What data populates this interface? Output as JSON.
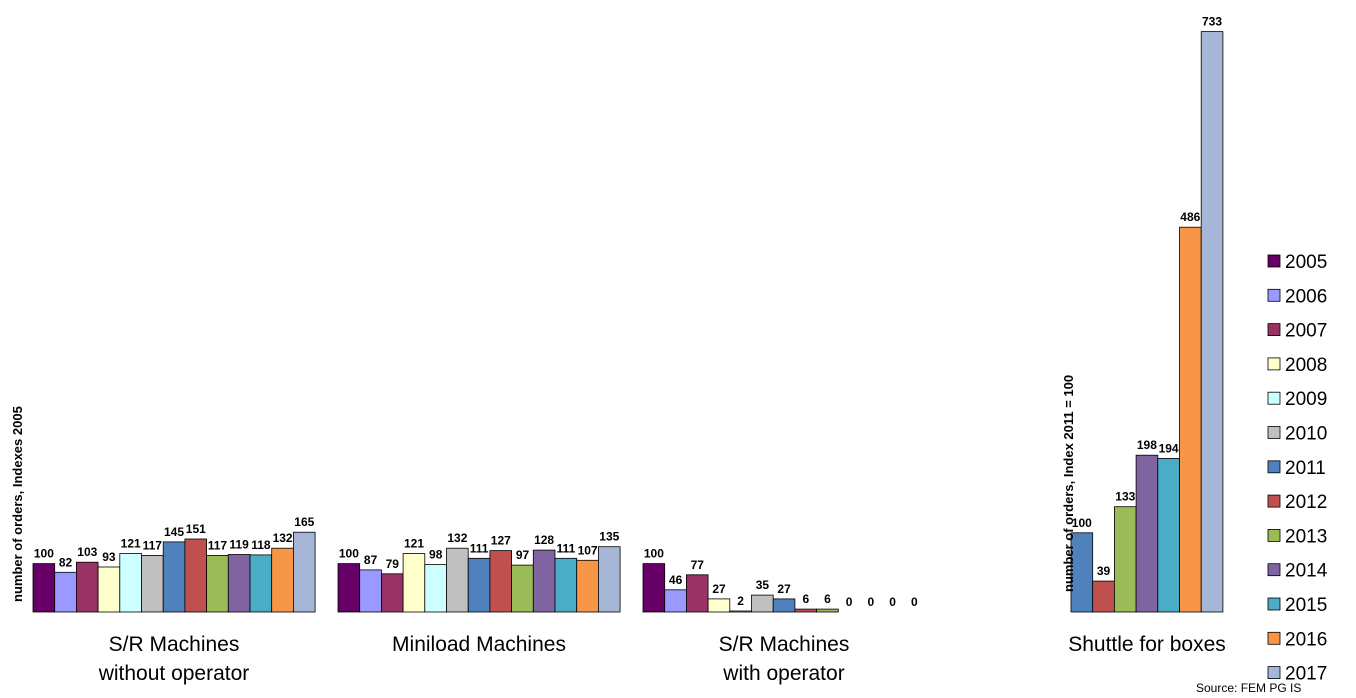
{
  "chart_data": {
    "type": "bar",
    "ylabel_left": "number of orders, Indexes 2005",
    "ylabel_right": "number of orders, Index  2011 = 100",
    "source": "Source: FEM PG IS",
    "legend_position": "right",
    "grid": false,
    "years": [
      "2005",
      "2006",
      "2007",
      "2008",
      "2009",
      "2010",
      "2011",
      "2012",
      "2013",
      "2014",
      "2015",
      "2016",
      "2017"
    ],
    "colors": [
      "#660066",
      "#9999FF",
      "#993366",
      "#FFFFCC",
      "#CCFFFF",
      "#C0C0C0",
      "#4F81BD",
      "#C0504D",
      "#9BBB59",
      "#8064A2",
      "#4BACC6",
      "#F79646",
      "#A6B6D6"
    ],
    "groups": [
      {
        "label": [
          "S/R Machines",
          "without operator"
        ],
        "values": [
          100,
          82,
          103,
          93,
          121,
          117,
          145,
          151,
          117,
          119,
          118,
          132,
          165
        ],
        "value_labels": [
          "100",
          "82",
          "103",
          "93",
          "121",
          "117",
          "145",
          "151",
          "117",
          "119",
          "118",
          "132",
          "165"
        ]
      },
      {
        "label": [
          "Miniload Machines"
        ],
        "values": [
          100,
          87,
          79,
          121,
          98,
          132,
          111,
          127,
          97,
          128,
          111,
          107,
          135
        ],
        "value_labels": [
          "100",
          "87",
          "79",
          "121",
          "98",
          "132",
          "111",
          "127",
          "97",
          "128",
          "111",
          "107",
          "135"
        ]
      },
      {
        "label": [
          "S/R Machines",
          "with operator"
        ],
        "values": [
          100,
          46,
          77,
          27,
          2,
          35,
          27,
          6,
          6,
          0,
          0,
          0,
          0
        ],
        "value_labels": [
          "100",
          "46",
          "77",
          "27",
          "2",
          "35",
          "27",
          "6",
          "6",
          "0",
          "0",
          "0",
          "0"
        ]
      },
      {
        "label": [
          "Shuttle for boxes"
        ],
        "start_year_index": 6,
        "values": [
          100,
          39,
          133,
          198,
          194,
          486,
          733
        ],
        "value_labels": [
          "100",
          "39",
          "133",
          "198",
          "194",
          "486",
          "733"
        ]
      }
    ]
  }
}
